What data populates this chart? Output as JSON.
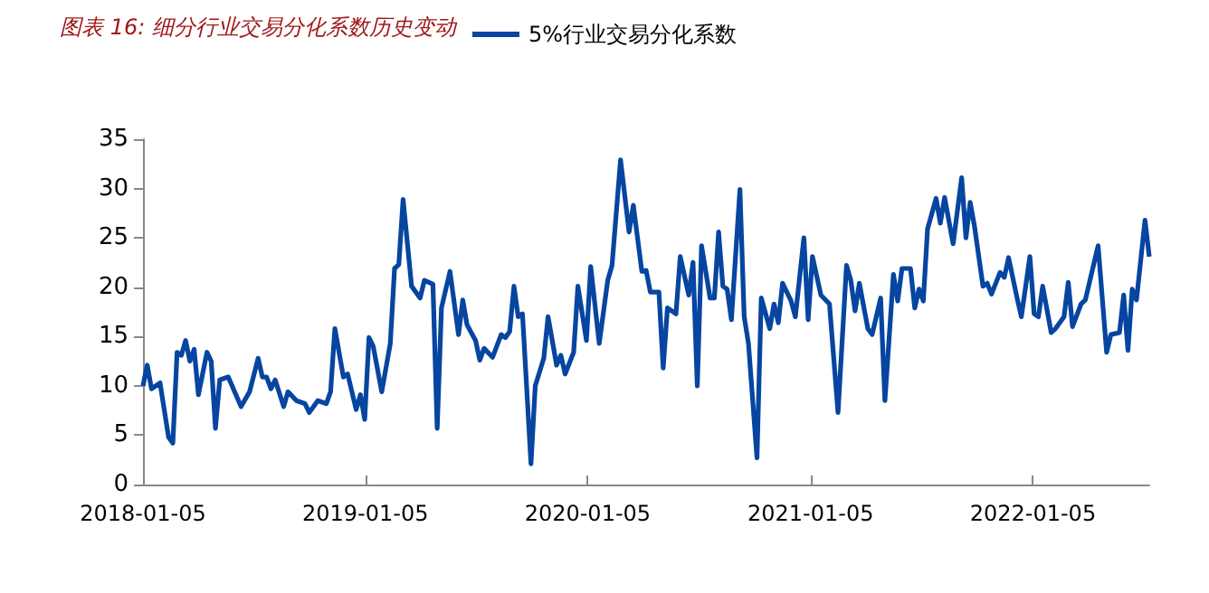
{
  "chart_data": {
    "type": "line",
    "title": "图表 16: 细分行业交易分化系数历史变动",
    "x": [
      "2018-01-05",
      "2018-01-12",
      "2018-01-19",
      "2018-02-02",
      "2018-02-16",
      "2018-02-23",
      "2018-03-02",
      "2018-03-09",
      "2018-03-16",
      "2018-03-23",
      "2018-03-30",
      "2018-04-06",
      "2018-04-20",
      "2018-04-27",
      "2018-05-04",
      "2018-05-11",
      "2018-05-25",
      "2018-06-15",
      "2018-06-29",
      "2018-07-13",
      "2018-07-20",
      "2018-07-27",
      "2018-08-03",
      "2018-08-10",
      "2018-08-24",
      "2018-08-31",
      "2018-09-14",
      "2018-09-28",
      "2018-10-05",
      "2018-10-19",
      "2018-11-02",
      "2018-11-09",
      "2018-11-16",
      "2018-11-30",
      "2018-12-07",
      "2018-12-21",
      "2018-12-28",
      "2019-01-04",
      "2019-01-11",
      "2019-01-18",
      "2019-02-01",
      "2019-02-15",
      "2019-02-22",
      "2019-03-01",
      "2019-03-08",
      "2019-03-22",
      "2019-04-05",
      "2019-04-12",
      "2019-04-26",
      "2019-05-03",
      "2019-05-10",
      "2019-05-24",
      "2019-06-07",
      "2019-06-14",
      "2019-06-21",
      "2019-07-05",
      "2019-07-12",
      "2019-07-19",
      "2019-08-02",
      "2019-08-16",
      "2019-08-23",
      "2019-08-30",
      "2019-09-06",
      "2019-09-13",
      "2019-09-20",
      "2019-10-04",
      "2019-10-11",
      "2019-10-25",
      "2019-11-01",
      "2019-11-15",
      "2019-11-22",
      "2019-11-29",
      "2019-12-13",
      "2019-12-20",
      "2020-01-03",
      "2020-01-10",
      "2020-01-24",
      "2020-02-07",
      "2020-02-14",
      "2020-02-28",
      "2020-03-13",
      "2020-03-20",
      "2020-04-03",
      "2020-04-10",
      "2020-04-17",
      "2020-05-01",
      "2020-05-08",
      "2020-05-15",
      "2020-05-29",
      "2020-06-05",
      "2020-06-19",
      "2020-06-26",
      "2020-07-03",
      "2020-07-10",
      "2020-07-24",
      "2020-07-31",
      "2020-08-07",
      "2020-08-14",
      "2020-08-21",
      "2020-08-28",
      "2020-09-11",
      "2020-09-18",
      "2020-09-25",
      "2020-10-09",
      "2020-10-16",
      "2020-10-30",
      "2020-11-06",
      "2020-11-13",
      "2020-11-20",
      "2020-12-04",
      "2020-12-11",
      "2020-12-25",
      "2021-01-01",
      "2021-01-08",
      "2021-01-22",
      "2021-02-05",
      "2021-02-19",
      "2021-03-05",
      "2021-03-12",
      "2021-03-19",
      "2021-03-26",
      "2021-04-09",
      "2021-04-16",
      "2021-04-30",
      "2021-05-07",
      "2021-05-21",
      "2021-05-28",
      "2021-06-04",
      "2021-06-18",
      "2021-06-25",
      "2021-07-02",
      "2021-07-09",
      "2021-07-16",
      "2021-07-30",
      "2021-08-06",
      "2021-08-13",
      "2021-08-27",
      "2021-09-10",
      "2021-09-17",
      "2021-09-24",
      "2021-10-01",
      "2021-10-15",
      "2021-10-22",
      "2021-10-29",
      "2021-11-12",
      "2021-11-19",
      "2021-11-26",
      "2021-12-10",
      "2021-12-17",
      "2021-12-31",
      "2022-01-07",
      "2022-01-14",
      "2022-01-21",
      "2022-02-04",
      "2022-02-11",
      "2022-02-25",
      "2022-03-04",
      "2022-03-11",
      "2022-03-25",
      "2022-04-01",
      "2022-04-22",
      "2022-05-06",
      "2022-05-13",
      "2022-05-27",
      "2022-06-03",
      "2022-06-10",
      "2022-06-17",
      "2022-06-24",
      "2022-07-08",
      "2022-07-15"
    ],
    "series": [
      {
        "name": "5%行业交易分化系数",
        "color": "#0645a0",
        "values": [
          10.0,
          12.1,
          9.7,
          10.3,
          4.8,
          4.2,
          13.4,
          13.1,
          14.6,
          12.5,
          13.7,
          9.1,
          13.4,
          12.5,
          5.7,
          10.6,
          10.9,
          7.9,
          9.4,
          12.8,
          10.9,
          10.9,
          9.7,
          10.6,
          7.9,
          9.4,
          8.5,
          8.2,
          7.3,
          8.5,
          8.2,
          9.4,
          15.8,
          10.9,
          11.2,
          7.6,
          9.1,
          6.6,
          14.9,
          14.0,
          9.4,
          14.3,
          21.9,
          22.3,
          28.9,
          20.1,
          18.9,
          20.7,
          20.3,
          5.7,
          17.9,
          21.6,
          15.2,
          18.7,
          16.2,
          14.6,
          12.6,
          13.8,
          12.9,
          15.2,
          14.9,
          15.5,
          20.1,
          17.0,
          17.3,
          2.1,
          10.0,
          12.8,
          17.0,
          12.1,
          13.1,
          11.2,
          13.4,
          20.1,
          14.6,
          22.1,
          14.3,
          20.7,
          22.2,
          32.9,
          25.6,
          28.3,
          21.6,
          21.7,
          19.5,
          19.5,
          11.8,
          17.9,
          17.3,
          23.1,
          19.2,
          22.5,
          10.0,
          24.2,
          18.9,
          18.9,
          25.6,
          20.1,
          19.8,
          16.7,
          29.9,
          17.0,
          14.3,
          2.7,
          18.9,
          15.8,
          18.3,
          16.4,
          20.4,
          18.6,
          17.0,
          25.0,
          16.7,
          23.1,
          19.2,
          18.3,
          7.3,
          22.2,
          20.7,
          17.6,
          20.4,
          15.8,
          15.2,
          18.9,
          8.5,
          21.3,
          18.6,
          21.9,
          21.9,
          17.9,
          19.8,
          18.6,
          25.9,
          29.0,
          26.5,
          29.1,
          24.4,
          31.1,
          25.0,
          28.6,
          26.2,
          20.1,
          20.4,
          19.3,
          21.5,
          21.0,
          23.0,
          18.9,
          17.0,
          23.1,
          17.3,
          17.0,
          20.1,
          15.4,
          15.8,
          17.0,
          20.5,
          16.0,
          18.3,
          18.7,
          24.2,
          13.4,
          15.2,
          15.4,
          19.2,
          13.6,
          19.8,
          18.7,
          26.8,
          23.1
        ]
      }
    ],
    "xlim": [
      "2018-01-05",
      "2022-07-15"
    ],
    "xticks": [
      "2018-01-05",
      "2019-01-05",
      "2020-01-05",
      "2021-01-05",
      "2022-01-05"
    ],
    "ylim": [
      0,
      35
    ],
    "yticks": [
      0,
      5,
      10,
      15,
      20,
      25,
      30,
      35
    ],
    "legend": "top",
    "grid": false,
    "marker": "none",
    "line_style": "solid"
  }
}
